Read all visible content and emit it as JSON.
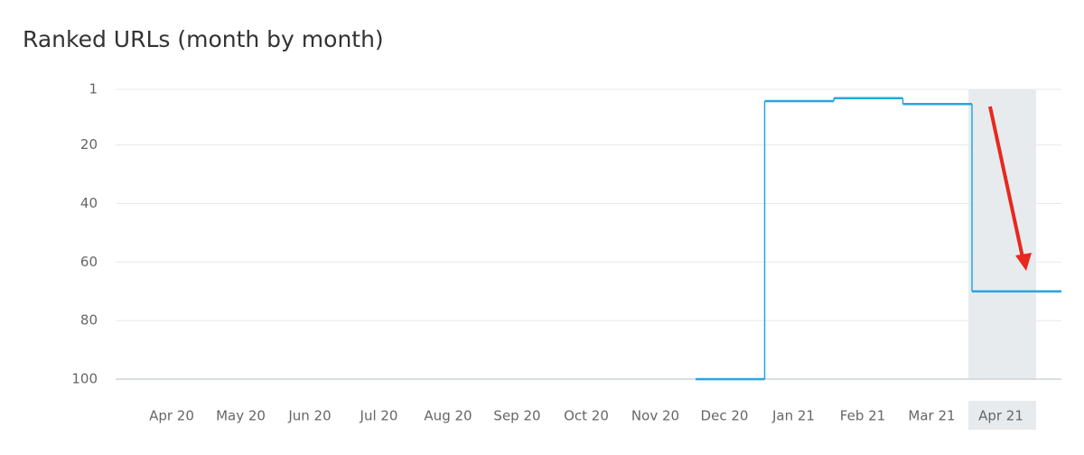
{
  "chart_data": {
    "type": "step",
    "title": "Ranked URLs (month by month)",
    "categories": [
      "Apr 20",
      "May 20",
      "Jun 20",
      "Jul 20",
      "Aug 20",
      "Sep 20",
      "Oct 20",
      "Nov 20",
      "Dec 20",
      "Jan 21",
      "Feb 21",
      "Mar 21",
      "Apr 21"
    ],
    "series": [
      {
        "color": "#27a6e0",
        "values": [
          null,
          null,
          null,
          null,
          null,
          null,
          null,
          null,
          100,
          5,
          4,
          6,
          70
        ]
      }
    ],
    "ylim": [
      100,
      1
    ],
    "yticks": [
      1,
      20,
      40,
      60,
      80,
      100
    ],
    "grid": true,
    "highlight_index": 12
  }
}
